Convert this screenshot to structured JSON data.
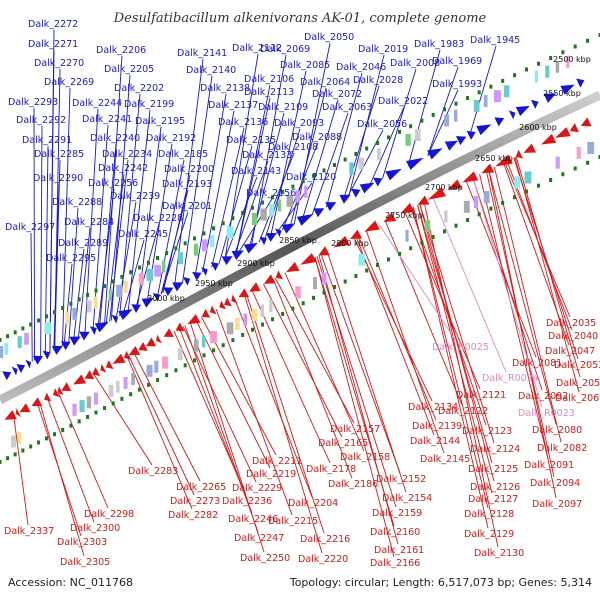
{
  "title": "Desulfatibacillum alkenivorans AK-01, complete genome",
  "footer": {
    "accession": "Accession: NC_011768",
    "summary": "Topology: circular; Length: 6,517,073 bp; Genes: 5,314"
  },
  "colors": {
    "forward": "#1515d6",
    "reverse": "#dd1515",
    "rna": "#e08ac8",
    "backbone": "#888888",
    "ticks": "#1c7a1c"
  },
  "scale_ticks": [
    "2500 kbp",
    "2550 kbp",
    "2600 kbp",
    "2650 kbp",
    "2700 kbp",
    "2750 kbp",
    "2800 kbp",
    "2850 kbp",
    "2900 kbp",
    "2950 kbp",
    "3000 kbp"
  ],
  "forward_labels": [
    "Dalk_2272",
    "Dalk_2271",
    "Dalk_2270",
    "Dalk_2269",
    "Dalk_2293",
    "Dalk_2292",
    "Dalk_2291",
    "Dalk_2285",
    "Dalk_2290",
    "Dalk_2288",
    "Dalk_2297",
    "Dalk_2289",
    "Dalk_2295",
    "Dalk_2206",
    "Dalk_2205",
    "Dalk_2202",
    "Dalk_2244",
    "Dalk_2199",
    "Dalk_2241",
    "Dalk_2195",
    "Dalk_2240",
    "Dalk_2192",
    "Dalk_2234",
    "Dalk_2185",
    "Dalk_2242",
    "Dalk_2200",
    "Dalk_2256",
    "Dalk_2193",
    "Dalk_2239",
    "Dalk_2201",
    "Dalk_2284",
    "Dalk_2228",
    "Dalk_2245",
    "Dalk_2141",
    "Dalk_2140",
    "Dalk_2138",
    "Dalk_2137",
    "Dalk_2136",
    "Dalk_2135",
    "Dalk_2133",
    "Dalk_2143",
    "Dalk_2156",
    "Dalk_2112",
    "Dalk_2106",
    "Dalk_2113",
    "Dalk_2109",
    "Dalk_2093",
    "Dalk_2088",
    "Dalk_2108",
    "Dalk_2120",
    "Dalk_2050",
    "Dalk_2069",
    "Dalk_2085",
    "Dalk_2064",
    "Dalk_2072",
    "Dalk_2063",
    "Dalk_2046",
    "Dalk_2019",
    "Dalk_2008",
    "Dalk_2028",
    "Dalk_2056",
    "Dalk_2022",
    "Dalk_1983",
    "Dalk_1969",
    "Dalk_1993",
    "Dalk_1945"
  ],
  "reverse_labels": [
    "Dalk_2035",
    "Dalk_2040",
    "Dalk_2047",
    "Dalk_2081",
    "Dalk_2053",
    "Dalk_2057",
    "Dalk_2092",
    "Dalk_2061",
    "Dalk_2121",
    "Dalk_2134",
    "Dalk_2122",
    "Dalk_2080",
    "Dalk_2139",
    "Dalk_2123",
    "Dalk_2082",
    "Dalk_2157",
    "Dalk_2144",
    "Dalk_2124",
    "Dalk_2165",
    "Dalk_2145",
    "Dalk_2091",
    "Dalk_2125",
    "Dalk_2158",
    "Dalk_2178",
    "Dalk_2094",
    "Dalk_2152",
    "Dalk_2126",
    "Dalk_2186",
    "Dalk_2154",
    "Dalk_2127",
    "Dalk_2097",
    "Dalk_2211",
    "Dalk_2219",
    "Dalk_2229",
    "Dalk_2204",
    "Dalk_2236",
    "Dalk_2159",
    "Dalk_2128",
    "Dalk_2215",
    "Dalk_2160",
    "Dalk_2129",
    "Dalk_2283",
    "Dalk_2265",
    "Dalk_2273",
    "Dalk_2282",
    "Dalk_2246",
    "Dalk_2216",
    "Dalk_2247",
    "Dalk_2161",
    "Dalk_2130",
    "Dalk_2220",
    "Dalk_2250",
    "Dalk_2166",
    "Dalk_2298",
    "Dalk_2300",
    "Dalk_2337",
    "Dalk_2303",
    "Dalk_2305"
  ],
  "rna_labels": [
    "Dalk_R0025",
    "Dalk_R0024",
    "Dalk_R0023"
  ]
}
